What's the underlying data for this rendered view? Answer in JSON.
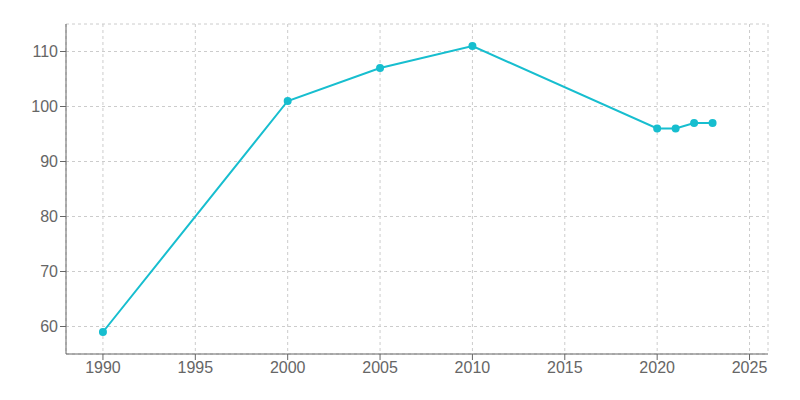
{
  "chart_data": {
    "type": "line",
    "x": [
      1990,
      2000,
      2005,
      2010,
      2020,
      2021,
      2022,
      2023
    ],
    "values": [
      59,
      101,
      107,
      111,
      96,
      96,
      97,
      97
    ],
    "color": "#17becf",
    "marker": "circle",
    "xlim": [
      1988,
      2026
    ],
    "ylim": [
      55,
      115
    ],
    "xticks": [
      1990,
      1995,
      2000,
      2005,
      2010,
      2015,
      2020,
      2025
    ],
    "yticks": [
      60,
      70,
      80,
      90,
      100,
      110
    ],
    "grid": true
  }
}
